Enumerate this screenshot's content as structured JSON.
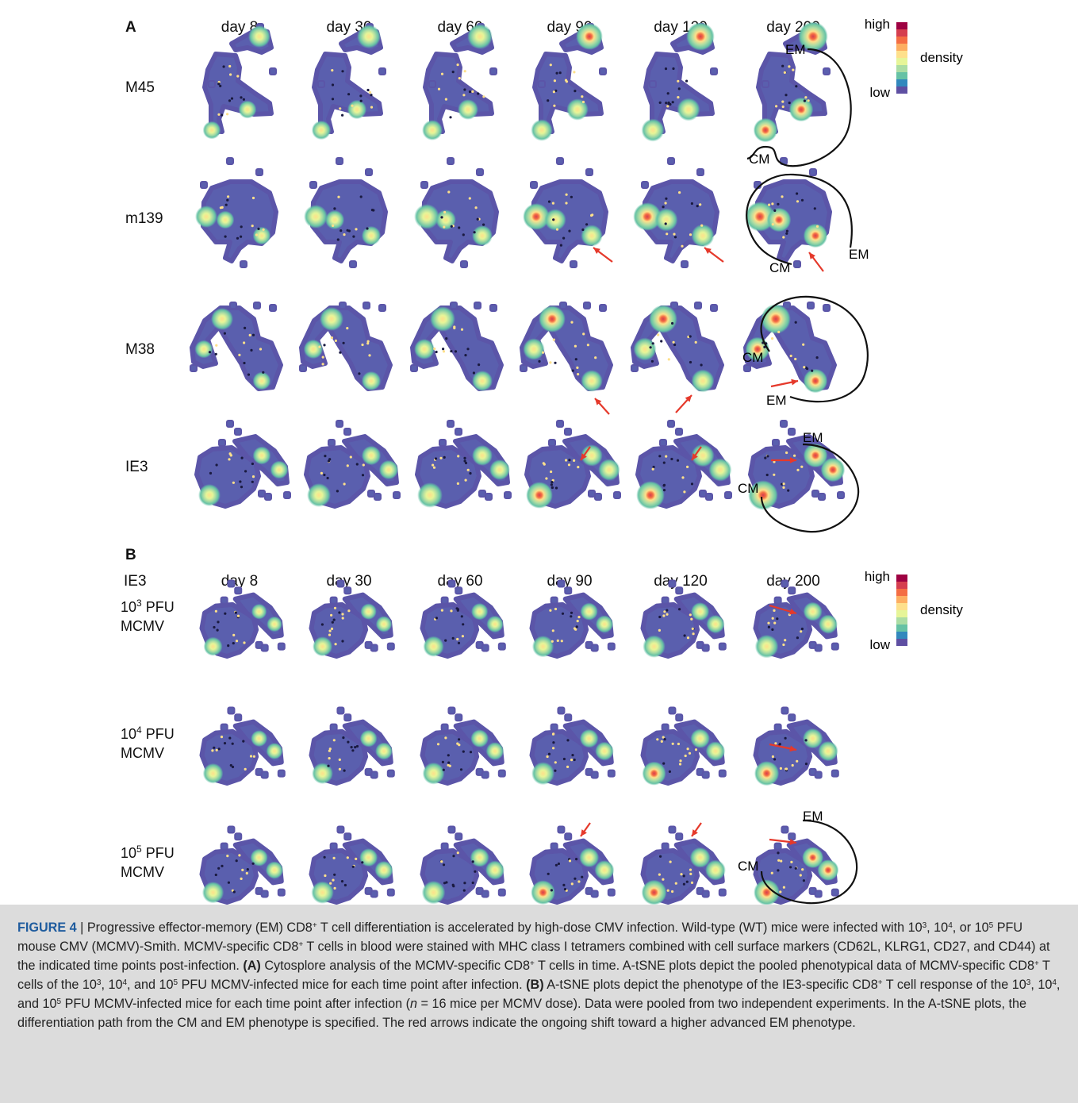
{
  "panel_a": {
    "label": "A",
    "days": [
      "day 8",
      "day 30",
      "day 60",
      "day 90",
      "day 120",
      "day 200"
    ],
    "rows": [
      {
        "label": "M45"
      },
      {
        "label": "m139"
      },
      {
        "label": "M38"
      },
      {
        "label": "IE3"
      }
    ],
    "annotation_labels": {
      "em": "EM",
      "cm": "CM"
    }
  },
  "panel_b": {
    "label": "B",
    "corner_label": "IE3",
    "days": [
      "day 8",
      "day 30",
      "day 60",
      "day 90",
      "day 120",
      "day 200"
    ],
    "rows": [
      {
        "line1": "10",
        "sup": "3",
        "line1_tail": " PFU",
        "line2": "MCMV"
      },
      {
        "line1": "10",
        "sup": "4",
        "line1_tail": " PFU",
        "line2": "MCMV"
      },
      {
        "line1": "10",
        "sup": "5",
        "line1_tail": " PFU",
        "line2": "MCMV"
      }
    ]
  },
  "legend": {
    "high": "high",
    "title": "density",
    "low": "low"
  },
  "colors": {
    "blob_outline": "#5b55a8",
    "blob_fill": "#5a5fae",
    "arrow": "#e5392b",
    "density_scale": [
      "#9e0142",
      "#d53e4f",
      "#f46d43",
      "#fdae61",
      "#fee08b",
      "#e6f598",
      "#abdda4",
      "#66c2a5",
      "#3288bd",
      "#5e4fa2"
    ]
  },
  "caption": {
    "label": "FIGURE 4",
    "lead": " | Progressive effector-memory (EM) CD8",
    "s1": "+",
    "t1": " T cell differentiation is accelerated by high-dose CMV infection. Wild-type (WT) mice were infected with 10",
    "s2": "3",
    "t2": ", 10",
    "s3": "4",
    "t3": ", or 10",
    "s4": "5",
    "t4": " PFU mouse CMV (MCMV)-Smith. MCMV-specific CD8",
    "s5": "+",
    "t5": " T cells in blood were stained with MHC class I tetramers combined with cell surface markers (CD62L, KLRG1, CD27, and CD44) at the indicated time points post-infection. ",
    "pa": "(A)",
    "t6": " Cytosplore analysis of the MCMV-specific CD8",
    "s6": "+",
    "t7": " T cells in time. A-tSNE plots depict the pooled phenotypical data of MCMV-specific CD8",
    "s7": "+",
    "t8": " T cells of the 10",
    "s8": "3",
    "t9": ", 10",
    "s9": "4",
    "t10": ", and 10",
    "s10": "5",
    "t11": " PFU MCMV-infected mice for each time point after infection. ",
    "pb": "(B)",
    "t12": " A-tSNE plots depict the phenotype of the IE3-specific CD8",
    "s11": "+",
    "t13": " T cell response of the 10",
    "s12": "3",
    "t14": ", 10",
    "s13": "4",
    "t15": ", and 10",
    "s14": "5",
    "t16": " PFU MCMV-infected mice for each time point after infection (",
    "n": "n",
    "t17": " = 16 mice per MCMV dose). Data were pooled from two independent experiments. In the A-tSNE plots, the differentiation path from the CM and EM phenotype is specified. The red arrows indicate the ongoing shift toward a higher advanced EM phenotype."
  }
}
